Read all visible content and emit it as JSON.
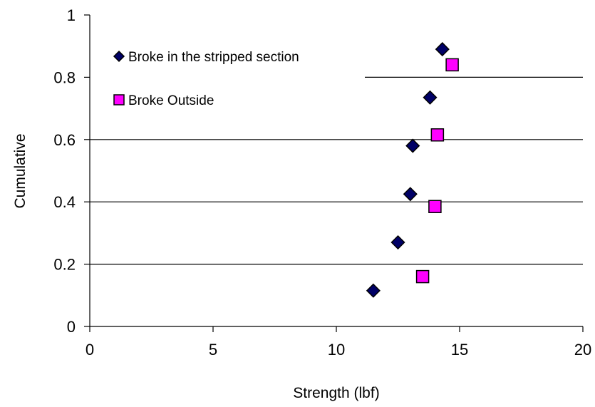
{
  "chart_data": {
    "type": "scatter",
    "title": "",
    "xlabel": "Strength (lbf)",
    "ylabel": "Cumulative",
    "xlim": [
      0,
      20
    ],
    "ylim": [
      0,
      1
    ],
    "x_ticks": [
      "0",
      "5",
      "10",
      "15",
      "20"
    ],
    "y_ticks": [
      "0",
      "0.2",
      "0.4",
      "0.6",
      "0.8",
      "1"
    ],
    "grid": "horizontal lines at 0.2, 0.4, 0.6, 0.8",
    "legend_position": "top-left",
    "series": [
      {
        "name": "Broke in the stripped section",
        "marker": "diamond",
        "color": "#000066",
        "points": [
          {
            "x": 11.5,
            "y": 0.115
          },
          {
            "x": 12.5,
            "y": 0.27
          },
          {
            "x": 13.0,
            "y": 0.425
          },
          {
            "x": 13.1,
            "y": 0.58
          },
          {
            "x": 13.8,
            "y": 0.735
          },
          {
            "x": 14.3,
            "y": 0.89
          }
        ]
      },
      {
        "name": "Broke Outside",
        "marker": "square",
        "color": "#ff00ff",
        "points": [
          {
            "x": 13.5,
            "y": 0.16
          },
          {
            "x": 14.0,
            "y": 0.385
          },
          {
            "x": 14.1,
            "y": 0.615
          },
          {
            "x": 14.7,
            "y": 0.84
          }
        ]
      }
    ]
  }
}
